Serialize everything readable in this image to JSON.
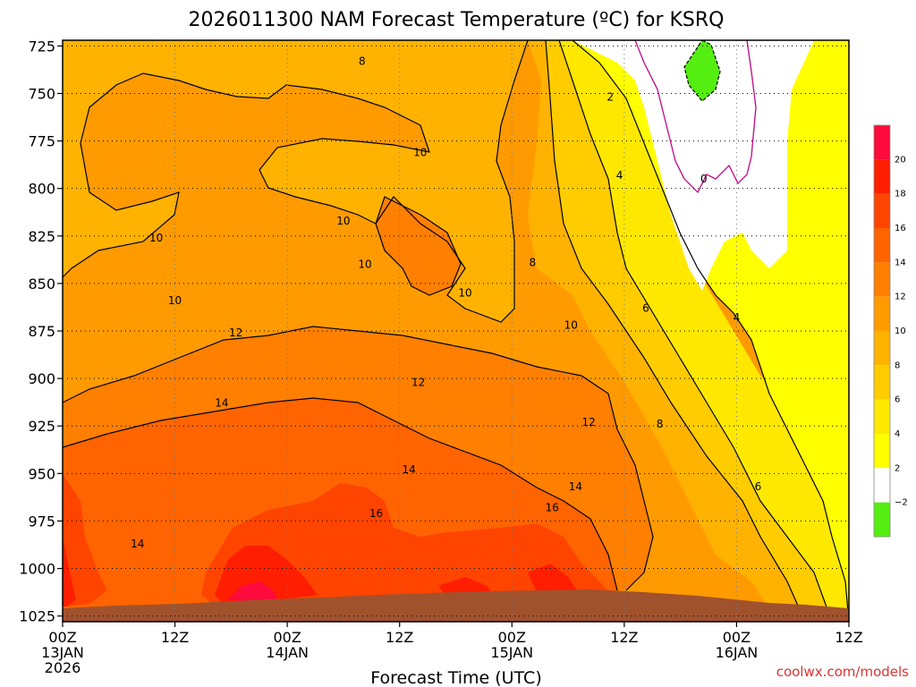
{
  "title": "2026011300 NAM Forecast Temperature (ºC) for KSRQ",
  "credit": "coolwx.com/models",
  "chart_data": {
    "type": "heatmap",
    "title": "2026011300 NAM Forecast Temperature (ºC) for KSRQ",
    "xlabel": "Forecast Time (UTC)",
    "ylabel": "",
    "x_ticks": [
      {
        "hour": 0,
        "line1": "00Z",
        "line2": "13JAN",
        "line3": "2026"
      },
      {
        "hour": 12,
        "line1": "12Z",
        "line2": "",
        "line3": ""
      },
      {
        "hour": 24,
        "line1": "00Z",
        "line2": "14JAN",
        "line3": ""
      },
      {
        "hour": 36,
        "line1": "12Z",
        "line2": "",
        "line3": ""
      },
      {
        "hour": 48,
        "line1": "00Z",
        "line2": "15JAN",
        "line3": ""
      },
      {
        "hour": 60,
        "line1": "12Z",
        "line2": "",
        "line3": ""
      },
      {
        "hour": 72,
        "line1": "00Z",
        "line2": "16JAN",
        "line3": ""
      },
      {
        "hour": 84,
        "line1": "12Z",
        "line2": "",
        "line3": ""
      }
    ],
    "y_ticks": [
      "725",
      "750",
      "775",
      "800",
      "825",
      "850",
      "875",
      "900",
      "925",
      "950",
      "975",
      "1000",
      "1025"
    ],
    "y_values": [
      725,
      750,
      775,
      800,
      825,
      850,
      875,
      900,
      925,
      950,
      975,
      1000,
      1025
    ],
    "xlim": [
      0,
      84
    ],
    "ylim": [
      1028,
      722
    ],
    "grid": true,
    "colorbar": {
      "labels": [
        "20",
        "18",
        "16",
        "14",
        "12",
        "10",
        "8",
        "6",
        "4",
        "2",
        "−2"
      ],
      "colors": [
        "#ff0a3c",
        "#ff1e00",
        "#ff4400",
        "#ff6400",
        "#ff7f00",
        "#ff9b00",
        "#ffb300",
        "#ffcc00",
        "#ffe800",
        "#ffff00",
        "#ffffff",
        "#55ee11"
      ]
    },
    "contour_labels": [
      {
        "text": "8",
        "hour": 32,
        "p": 733
      },
      {
        "text": "2",
        "hour": 58.5,
        "p": 752
      },
      {
        "text": "10",
        "hour": 38.2,
        "p": 781
      },
      {
        "text": "4",
        "hour": 59.5,
        "p": 793
      },
      {
        "text": "0",
        "hour": 68.5,
        "p": 795
      },
      {
        "text": "10",
        "hour": 30,
        "p": 817
      },
      {
        "text": "10",
        "hour": 10,
        "p": 826
      },
      {
        "text": "10",
        "hour": 32.3,
        "p": 840
      },
      {
        "text": "8",
        "hour": 50.2,
        "p": 839
      },
      {
        "text": "10",
        "hour": 43,
        "p": 855
      },
      {
        "text": "10",
        "hour": 12,
        "p": 859
      },
      {
        "text": "6",
        "hour": 62.3,
        "p": 863
      },
      {
        "text": "4",
        "hour": 72,
        "p": 868
      },
      {
        "text": "10",
        "hour": 54.3,
        "p": 872
      },
      {
        "text": "12",
        "hour": 18.5,
        "p": 876
      },
      {
        "text": "12",
        "hour": 38,
        "p": 902
      },
      {
        "text": "14",
        "hour": 17,
        "p": 913
      },
      {
        "text": "12",
        "hour": 56.2,
        "p": 923
      },
      {
        "text": "8",
        "hour": 63.8,
        "p": 924
      },
      {
        "text": "14",
        "hour": 37,
        "p": 948
      },
      {
        "text": "14",
        "hour": 54.8,
        "p": 957
      },
      {
        "text": "6",
        "hour": 74.3,
        "p": 957
      },
      {
        "text": "16",
        "hour": 52.3,
        "p": 968
      },
      {
        "text": "16",
        "hour": 33.5,
        "p": 971
      },
      {
        "text": "14",
        "hour": 8,
        "p": 987
      }
    ]
  }
}
